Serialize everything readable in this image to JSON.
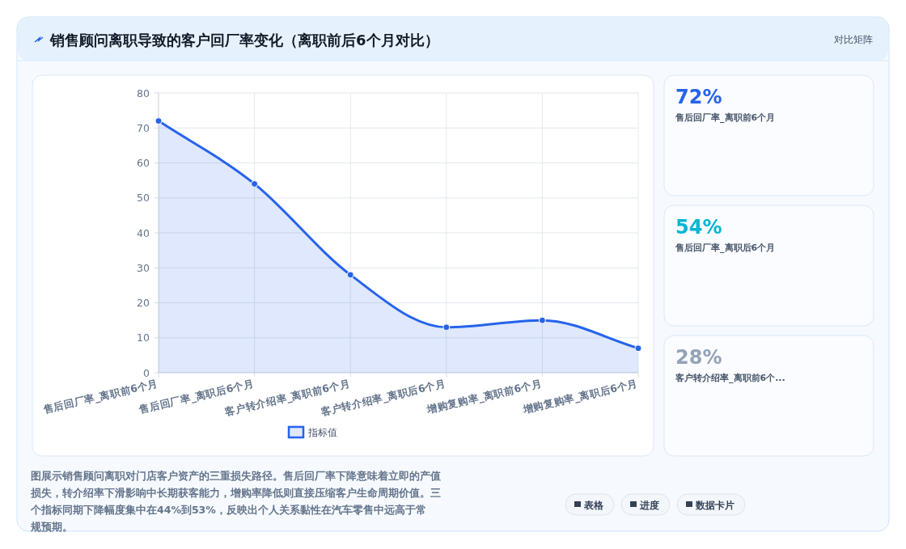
{
  "chart_data": [
    {
      "type": "area",
      "title": "销售顾问离职导致的客户回厂率变化（离职前后6个月对比）",
      "categories": [
        "售后回厂率_离职前6个月",
        "售后回厂率_离职后6个月",
        "客户转介绍率_离职前6个月",
        "客户转介绍率_离职后6个月",
        "增购复购率_离职前6个月",
        "增购复购率_离职后6个月"
      ],
      "series": [
        {
          "name": "指标值",
          "color": "#2563eb",
          "values": [
            72,
            54,
            28,
            13,
            15,
            7
          ]
        }
      ],
      "ylim": [
        0,
        80
      ],
      "yticks": [
        0,
        10,
        20,
        30,
        40,
        50,
        60,
        70,
        80
      ],
      "grid": true,
      "legend": "bottom",
      "marker": "circle",
      "annotations": [
        "对比矩阵",
        "图展示销售顾问离职对门店客户资产的三重损失路径。售后回厂率下降意味着立即的产值损失，转介绍率下滑影响中长期获客能力，增购率降低则直接压缩客户生命周期价值。三个指标同期下降幅度集中在44%到53%，反映出个人关系黏性在汽车零售中远高于常规预期。",
        "表格",
        "进度",
        "数据卡片"
      ]
    },
    {
      "type": "other",
      "title": "72%",
      "subtitle": "售后回厂率_离职前6个月"
    },
    {
      "type": "other",
      "title": "54%",
      "subtitle": "售后回厂率_离职后6个月"
    },
    {
      "type": "other",
      "title": "28%",
      "subtitle": "客户转介绍率_离职前6个..."
    }
  ]
}
